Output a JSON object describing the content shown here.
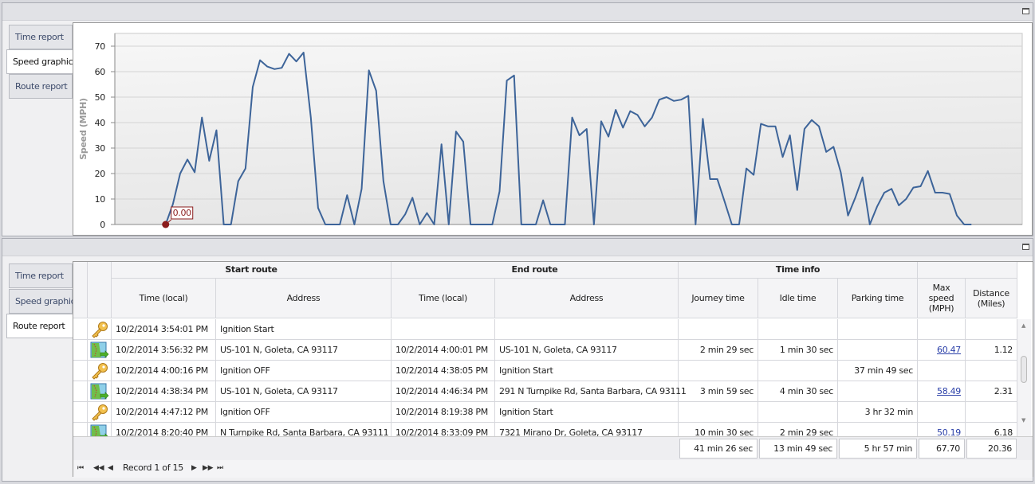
{
  "top_panel": {
    "tabs": [
      {
        "label": "Time report"
      },
      {
        "label": "Speed graphic",
        "active": true
      },
      {
        "label": "Route report"
      }
    ],
    "restore_icon": "restore-window-icon"
  },
  "chart_data": {
    "type": "line",
    "title": "",
    "xlabel": "",
    "ylabel": "Speed (MPH)",
    "ylim": [
      0,
      75
    ],
    "xlim": [
      -7,
      118
    ],
    "yticks": [
      0,
      10,
      20,
      30,
      40,
      50,
      60,
      70
    ],
    "grid": true,
    "line_color": "#3d6499",
    "marker": {
      "index": 0,
      "label": "0.00",
      "color": "#8b1c1c"
    },
    "values": [
      0,
      8,
      20,
      25.5,
      20.5,
      42,
      25,
      37,
      0,
      0,
      17,
      22,
      54,
      64.5,
      62,
      61,
      61.5,
      67,
      64,
      67.5,
      42,
      6.5,
      0,
      0,
      0,
      11.5,
      0,
      14,
      60.5,
      52.5,
      17,
      0,
      0,
      4,
      10.5,
      0,
      4.5,
      0,
      31.5,
      0,
      36.5,
      32.5,
      0,
      0,
      0,
      0,
      13,
      56.5,
      58.5,
      0,
      0,
      0,
      9.5,
      0,
      0,
      0,
      42,
      35,
      37.5,
      0,
      40.5,
      34.5,
      45,
      38,
      44.5,
      43,
      38.5,
      42,
      49,
      50,
      48.5,
      49,
      50.5,
      0,
      41.5,
      17.8,
      17.8,
      9,
      0,
      0,
      22,
      19.5,
      39.5,
      38.5,
      38.5,
      26.5,
      35,
      13.5,
      37.5,
      41,
      38.5,
      28.5,
      30.5,
      20.5,
      3.5,
      10.5,
      18.5,
      0,
      7,
      12.5,
      14,
      7.5,
      10,
      14.5,
      15,
      21,
      12.5,
      12.5,
      12,
      3.5,
      0,
      0
    ]
  },
  "bottom_panel": {
    "tabs": [
      {
        "label": "Time report"
      },
      {
        "label": "Speed graphic"
      },
      {
        "label": "Route report",
        "active": true
      }
    ],
    "groups": {
      "start": "Start route",
      "end": "End route",
      "time": "Time info"
    },
    "columns": {
      "start_time": "Time (local)",
      "start_address": "Address",
      "end_time": "Time (local)",
      "end_address": "Address",
      "journey": "Journey time",
      "idle": "Idle time",
      "parking": "Parking time",
      "max_speed": "Max speed (MPH)",
      "distance": "Distance (Miles)"
    },
    "rows": [
      {
        "icon": "key-icon",
        "start_time": "10/2/2014 3:54:01 PM",
        "start_address": "Ignition Start",
        "end_time": "",
        "end_address": "",
        "journey": "",
        "idle": "",
        "parking": "",
        "max_speed": "",
        "distance": ""
      },
      {
        "icon": "route-map-icon",
        "start_time": "10/2/2014 3:56:32 PM",
        "start_address": "US-101 N, Goleta, CA 93117",
        "end_time": "10/2/2014 4:00:01 PM",
        "end_address": "US-101 N, Goleta, CA 93117",
        "journey": "2 min 29 sec",
        "idle": "1 min 30 sec",
        "parking": "",
        "max_speed": "60.47",
        "distance": "1.12"
      },
      {
        "icon": "key-icon",
        "start_time": "10/2/2014 4:00:16 PM",
        "start_address": "Ignition OFF",
        "end_time": "10/2/2014 4:38:05 PM",
        "end_address": "Ignition Start",
        "journey": "",
        "idle": "",
        "parking": "37 min 49 sec",
        "max_speed": "",
        "distance": ""
      },
      {
        "icon": "route-map-icon",
        "start_time": "10/2/2014 4:38:34 PM",
        "start_address": "US-101 N, Goleta, CA 93117",
        "end_time": "10/2/2014 4:46:34 PM",
        "end_address": "291 N Turnpike Rd, Santa Barbara, CA 93111",
        "journey": "3 min 59 sec",
        "idle": "4 min 30 sec",
        "parking": "",
        "max_speed": "58.49",
        "distance": "2.31"
      },
      {
        "icon": "key-icon",
        "start_time": "10/2/2014 4:47:12 PM",
        "start_address": "Ignition OFF",
        "end_time": "10/2/2014 8:19:38 PM",
        "end_address": "Ignition Start",
        "journey": "",
        "idle": "",
        "parking": "3 hr 32 min",
        "max_speed": "",
        "distance": ""
      },
      {
        "icon": "route-map-icon",
        "start_time": "10/2/2014 8:20:40 PM",
        "start_address": "N Turnpike Rd, Santa Barbara, CA 93111",
        "end_time": "10/2/2014 8:33:09 PM",
        "end_address": "7321 Mirano Dr, Goleta, CA 93117",
        "journey": "10 min 30 sec",
        "idle": "2 min 29 sec",
        "parking": "",
        "max_speed": "50.19",
        "distance": "6.18"
      }
    ],
    "totals": {
      "journey": "41 min 26 sec",
      "idle": "13 min 49 sec",
      "parking": "5 hr 57 min",
      "max_speed": "67.70",
      "distance": "20.36"
    },
    "navigator": {
      "record": "Record 1 of 15"
    }
  }
}
